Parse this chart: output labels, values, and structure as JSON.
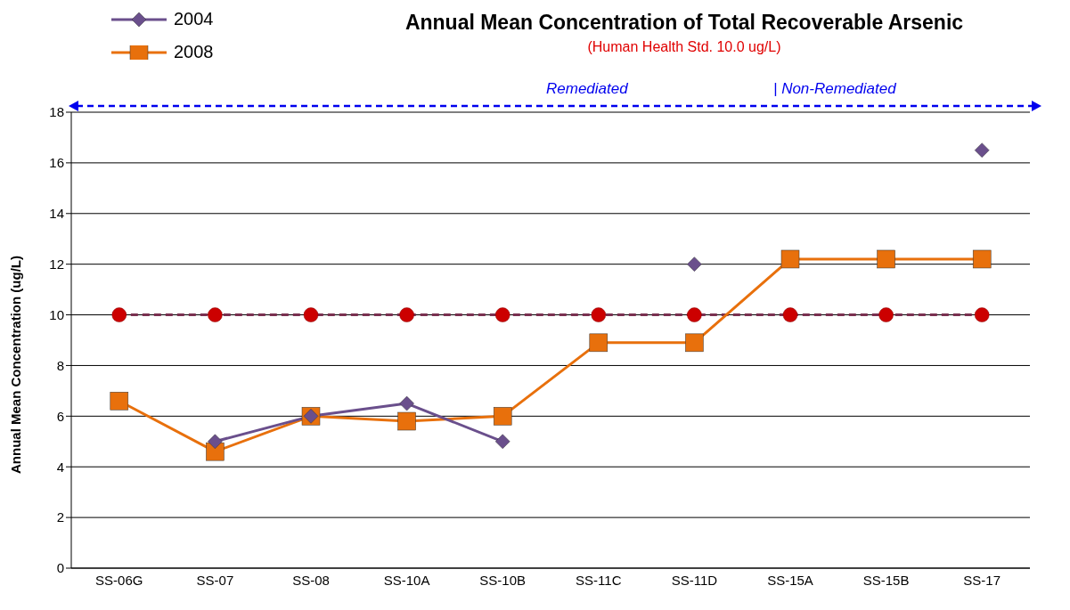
{
  "chart_data": {
    "type": "line",
    "title": "Annual Mean Concentration of Total  Recoverable Arsenic",
    "subtitle": "(Human Health Std. 10.0 ug/L)",
    "ylabel": "Annual Mean Concentration (ug/L)",
    "annotations": [
      "Remediated",
      "| Non-Remediated"
    ],
    "categories": [
      "SS-06G",
      "SS-07",
      "SS-08",
      "SS-10A",
      "SS-10B",
      "SS-11C",
      "SS-11D",
      "SS-15A",
      "SS-15B",
      "SS-17"
    ],
    "series": [
      {
        "name": "2004",
        "color": "#6a4f8c",
        "marker": "diamond",
        "values": [
          null,
          5.0,
          6.0,
          6.5,
          5.0,
          null,
          12.0,
          null,
          null,
          16.5
        ]
      },
      {
        "name": "2008",
        "color": "#e8700c",
        "marker": "square",
        "values": [
          6.6,
          4.6,
          6.0,
          5.8,
          6.0,
          8.9,
          8.9,
          12.2,
          12.2,
          12.2
        ]
      },
      {
        "color": "#cc0000",
        "marker": "circle",
        "line_style": "dashed",
        "values": [
          10,
          10,
          10,
          10,
          10,
          10,
          10,
          10,
          10,
          10
        ]
      }
    ],
    "ylim": [
      0,
      18
    ],
    "yticks": [
      0,
      2,
      4,
      6,
      8,
      10,
      12,
      14,
      16,
      18
    ],
    "grid": "y",
    "legend": "top left"
  }
}
